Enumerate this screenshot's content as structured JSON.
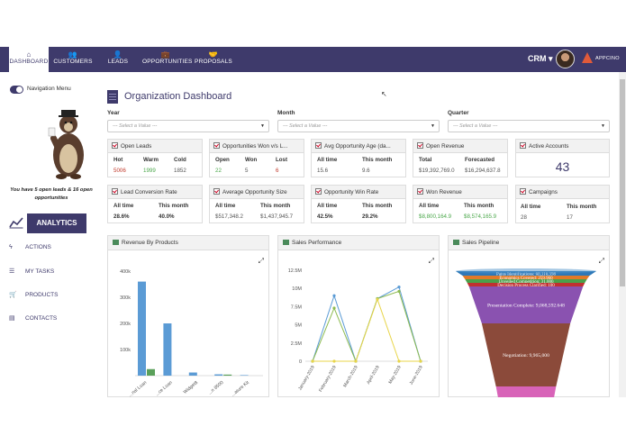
{
  "nav": {
    "tabs": [
      {
        "label": "DASHBOARD",
        "icon": "home-icon",
        "glyph": "⌂"
      },
      {
        "label": "CUSTOMERS",
        "icon": "users-icon",
        "glyph": "👥"
      },
      {
        "label": "LEADS",
        "icon": "add-user-icon",
        "glyph": "👤"
      },
      {
        "label": "OPPORTUNITIES",
        "icon": "briefcase-icon",
        "glyph": "💼"
      },
      {
        "label": "PROPOSALS",
        "icon": "handshake-icon",
        "glyph": "🤝"
      }
    ],
    "app_switcher": "CRM ▾",
    "brand": "APPCINO"
  },
  "sidebar": {
    "toggle_label": "Navigation Menu",
    "leads_message": "You have 5 open leads & 16 open opportunities",
    "analytics_label": "ANALYTICS",
    "items": [
      {
        "label": "ACTIONS",
        "icon": "bolt-icon",
        "glyph": "ϟ"
      },
      {
        "label": "MY TASKS",
        "icon": "tasks-icon",
        "glyph": "☰"
      },
      {
        "label": "PRODUCTS",
        "icon": "cart-icon",
        "glyph": "🛒"
      },
      {
        "label": "CONTACTS",
        "icon": "contact-card-icon",
        "glyph": "▤"
      }
    ]
  },
  "page": {
    "title": "Organization Dashboard"
  },
  "filters": {
    "year": {
      "label": "Year",
      "placeholder": "--- Select a Value ---"
    },
    "month": {
      "label": "Month",
      "placeholder": "--- Select a Value ---"
    },
    "quarter": {
      "label": "Quarter",
      "placeholder": "--- Select a Value ---"
    }
  },
  "cards": {
    "open_leads": {
      "title": "Open Leads",
      "cols": [
        {
          "k": "Hot",
          "v": "5006"
        },
        {
          "k": "Warm",
          "v": "1999"
        },
        {
          "k": "Cold",
          "v": "1852"
        }
      ]
    },
    "opps_won": {
      "title": "Opportunities Won v/s L...",
      "cols": [
        {
          "k": "Open",
          "v": "22"
        },
        {
          "k": "Won",
          "v": "5"
        },
        {
          "k": "Lost",
          "v": "6"
        }
      ]
    },
    "avg_age": {
      "title": "Avg Opportunity Age (da...",
      "cols": [
        {
          "k": "All time",
          "v": "15.6"
        },
        {
          "k": "This month",
          "v": "9.6"
        }
      ]
    },
    "open_revenue": {
      "title": "Open Revenue",
      "cols": [
        {
          "k": "Total",
          "v": "$19,392,769.0"
        },
        {
          "k": "Forecasted",
          "v": "$16,294,637.8"
        }
      ]
    },
    "active_accounts": {
      "title": "Active Accounts",
      "value": "43"
    },
    "lead_conversion": {
      "title": "Lead Conversion Rate",
      "cols": [
        {
          "k": "All time",
          "v": "28.6%"
        },
        {
          "k": "This month",
          "v": "40.0%"
        }
      ]
    },
    "avg_opp_size": {
      "title": "Average Opportunity Size",
      "cols": [
        {
          "k": "All time",
          "v": "$517,348.2"
        },
        {
          "k": "This month",
          "v": "$1,437,945.7"
        }
      ]
    },
    "win_rate": {
      "title": "Opportunity Win Rate",
      "cols": [
        {
          "k": "All time",
          "v": "42.5%"
        },
        {
          "k": "This month",
          "v": "29.2%"
        }
      ]
    },
    "won_revenue": {
      "title": "Won Revenue",
      "cols": [
        {
          "k": "All time",
          "v": "$8,800,164.9"
        },
        {
          "k": "This month",
          "v": "$8,574,165.9"
        }
      ]
    },
    "campaigns": {
      "title": "Campaigns",
      "cols": [
        {
          "k": "All time",
          "v": "28"
        },
        {
          "k": "This month",
          "v": "17"
        }
      ]
    }
  },
  "panels": {
    "revenue": {
      "title": "Revenue By Products"
    },
    "sales": {
      "title": "Sales Performance"
    },
    "pipeline": {
      "title": "Sales Pipeline"
    }
  },
  "chart_data": [
    {
      "type": "bar",
      "title": "Revenue By Products",
      "categories": [
        "...nal Loan",
        "...ce Loan",
        "Widget8",
        "...n 8500",
        "...ature Kit"
      ],
      "series": [
        {
          "color": "#5b9bd5",
          "values": [
            360000,
            200000,
            12000,
            5000,
            2000
          ]
        },
        {
          "color": "#5aa05a",
          "values": [
            25000,
            0,
            0,
            4000,
            0
          ]
        }
      ],
      "yticks": [
        "100k",
        "200k",
        "300k",
        "400k"
      ],
      "ylim": [
        0,
        400000
      ]
    },
    {
      "type": "line",
      "title": "Sales Performance",
      "x": [
        "January-2019",
        "February-2019",
        "March-2019",
        "April-2019",
        "May-2019",
        "June-2019"
      ],
      "series": [
        {
          "color": "#5b9bd5",
          "values": [
            0,
            9000000,
            0,
            8600000,
            10200000,
            0
          ]
        },
        {
          "color": "#8dbb50",
          "values": [
            0,
            7300000,
            0,
            8600000,
            9600000,
            0
          ]
        },
        {
          "color": "#e8d54a",
          "values": [
            0,
            0,
            0,
            8500000,
            0,
            0
          ]
        }
      ],
      "yticks": [
        "0",
        "2.5M",
        "5M",
        "7.5M",
        "10M",
        "12.5M"
      ],
      "ylim": [
        0,
        12500000
      ]
    },
    {
      "type": "funnel",
      "title": "Sales Pipeline",
      "stages": [
        {
          "label": "Paius Identifications: 68,116,398",
          "color": "#2e78b8"
        },
        {
          "label": "Economics Covered: 259,960",
          "color": "#e07a28"
        },
        {
          "label": "Unveiled Competition: 31,000",
          "color": "#4aa04a"
        },
        {
          "label": "Decision Process Clarified: 100",
          "color": "#c03030"
        },
        {
          "label": "Presentation Complete: 9,068,592.648",
          "color": "#8a52b0"
        },
        {
          "label": "Negotiation: 9,965,000",
          "color": "#8b4a3a"
        },
        {
          "label": "",
          "color": "#d863b8"
        }
      ]
    }
  ]
}
